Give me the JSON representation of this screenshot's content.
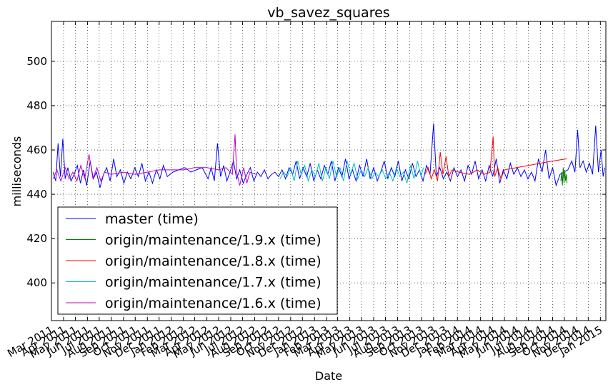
{
  "chart_data": {
    "type": "line",
    "title": "vb_savez_squares",
    "xlabel": "Date",
    "ylabel": "milliseconds",
    "ylim": [
      383,
      518
    ],
    "yticks": [
      400,
      420,
      440,
      460,
      480,
      500
    ],
    "xlim": [
      "2011-03-01",
      "2015-01-15"
    ],
    "xticks": [
      "Mar 2011",
      "Apr 2011",
      "May 2011",
      "Jun 2011",
      "Jul 2011",
      "Aug 2011",
      "Sep 2011",
      "Oct 2011",
      "Nov 2011",
      "Dec 2011",
      "Jan 2012",
      "Feb 2012",
      "Mar 2012",
      "Apr 2012",
      "May 2012",
      "Jun 2012",
      "Jul 2012",
      "Aug 2012",
      "Sep 2012",
      "Oct 2012",
      "Nov 2012",
      "Dec 2012",
      "Jan 2013",
      "Feb 2013",
      "Mar 2013",
      "Apr 2013",
      "May 2013",
      "Jun 2013",
      "Jul 2013",
      "Aug 2013",
      "Sep 2013",
      "Oct 2013",
      "Nov 2013",
      "Dec 2013",
      "Jan 2014",
      "Feb 2014",
      "Mar 2014",
      "Apr 2014",
      "May 2014",
      "Jun 2014",
      "Jul 2014",
      "Aug 2014",
      "Sep 2014",
      "Oct 2014",
      "Nov 2014",
      "Dec 2014",
      "Jan 2015"
    ],
    "grid": true,
    "legend_position": "lower-left",
    "series": [
      {
        "name": "master (time)",
        "color": "#0000ff",
        "points": [
          [
            "2011-03-05",
            450
          ],
          [
            "2011-03-12",
            446
          ],
          [
            "2011-03-18",
            463
          ],
          [
            "2011-03-24",
            448
          ],
          [
            "2011-03-30",
            465
          ],
          [
            "2011-04-05",
            447
          ],
          [
            "2011-04-12",
            452
          ],
          [
            "2011-04-20",
            446
          ],
          [
            "2011-04-28",
            449
          ],
          [
            "2011-05-06",
            453
          ],
          [
            "2011-05-14",
            445
          ],
          [
            "2011-05-22",
            451
          ],
          [
            "2011-05-30",
            444
          ],
          [
            "2011-06-08",
            455
          ],
          [
            "2011-06-16",
            447
          ],
          [
            "2011-06-24",
            450
          ],
          [
            "2011-07-03",
            443
          ],
          [
            "2011-07-12",
            449
          ],
          [
            "2011-07-20",
            452
          ],
          [
            "2011-07-29",
            446
          ],
          [
            "2011-08-07",
            456
          ],
          [
            "2011-08-15",
            448
          ],
          [
            "2011-08-24",
            451
          ],
          [
            "2011-09-02",
            445
          ],
          [
            "2011-09-11",
            450
          ],
          [
            "2011-09-20",
            447
          ],
          [
            "2011-09-30",
            452
          ],
          [
            "2011-10-09",
            448
          ],
          [
            "2011-10-18",
            454
          ],
          [
            "2011-10-27",
            446
          ],
          [
            "2011-11-05",
            450
          ],
          [
            "2011-11-14",
            445
          ],
          [
            "2011-11-24",
            451
          ],
          [
            "2011-12-03",
            447
          ],
          [
            "2011-12-12",
            453
          ],
          [
            "2011-12-22",
            448
          ],
          [
            "2012-01-05",
            450
          ],
          [
            "2012-01-20",
            451
          ],
          [
            "2012-02-05",
            452
          ],
          [
            "2012-02-20",
            450
          ],
          [
            "2012-03-05",
            451
          ],
          [
            "2012-03-20",
            452
          ],
          [
            "2012-04-04",
            447
          ],
          [
            "2012-04-12",
            452
          ],
          [
            "2012-04-20",
            446
          ],
          [
            "2012-04-28",
            463
          ],
          [
            "2012-05-06",
            448
          ],
          [
            "2012-05-14",
            453
          ],
          [
            "2012-05-22",
            446
          ],
          [
            "2012-05-30",
            450
          ],
          [
            "2012-06-08",
            455
          ],
          [
            "2012-06-16",
            447
          ],
          [
            "2012-06-24",
            451
          ],
          [
            "2012-07-03",
            445
          ],
          [
            "2012-07-12",
            449
          ],
          [
            "2012-07-21",
            452
          ],
          [
            "2012-07-30",
            446
          ],
          [
            "2012-08-08",
            450
          ],
          [
            "2012-08-17",
            448
          ],
          [
            "2012-08-26",
            451
          ],
          [
            "2012-09-04",
            447
          ],
          [
            "2012-09-13",
            449
          ],
          [
            "2012-09-22",
            450
          ],
          [
            "2012-10-01",
            448
          ],
          [
            "2012-10-10",
            451
          ],
          [
            "2012-10-19",
            447
          ],
          [
            "2012-10-28",
            452
          ],
          [
            "2012-11-06",
            449
          ],
          [
            "2012-11-15",
            455
          ],
          [
            "2012-11-24",
            447
          ],
          [
            "2012-12-03",
            452
          ],
          [
            "2012-12-12",
            448
          ],
          [
            "2012-12-21",
            454
          ],
          [
            "2012-12-30",
            446
          ],
          [
            "2013-01-08",
            451
          ],
          [
            "2013-01-17",
            447
          ],
          [
            "2013-01-26",
            453
          ],
          [
            "2013-02-04",
            449
          ],
          [
            "2013-02-13",
            455
          ],
          [
            "2013-02-22",
            446
          ],
          [
            "2013-03-03",
            452
          ],
          [
            "2013-03-12",
            448
          ],
          [
            "2013-03-21",
            456
          ],
          [
            "2013-03-30",
            447
          ],
          [
            "2013-04-08",
            451
          ],
          [
            "2013-04-17",
            446
          ],
          [
            "2013-04-26",
            453
          ],
          [
            "2013-05-05",
            448
          ],
          [
            "2013-05-14",
            456
          ],
          [
            "2013-05-23",
            447
          ],
          [
            "2013-06-01",
            452
          ],
          [
            "2013-06-10",
            446
          ],
          [
            "2013-06-19",
            450
          ],
          [
            "2013-06-28",
            455
          ],
          [
            "2013-07-07",
            447
          ],
          [
            "2013-07-16",
            452
          ],
          [
            "2013-07-25",
            448
          ],
          [
            "2013-08-03",
            455
          ],
          [
            "2013-08-12",
            446
          ],
          [
            "2013-08-21",
            451
          ],
          [
            "2013-08-30",
            447
          ],
          [
            "2013-09-08",
            454
          ],
          [
            "2013-09-17",
            448
          ],
          [
            "2013-09-26",
            451
          ],
          [
            "2013-10-05",
            446
          ],
          [
            "2013-10-14",
            453
          ],
          [
            "2013-10-23",
            449
          ],
          [
            "2013-11-01",
            472
          ],
          [
            "2013-11-08",
            448
          ],
          [
            "2013-11-17",
            452
          ],
          [
            "2013-11-26",
            447
          ],
          [
            "2013-12-05",
            450
          ],
          [
            "2013-12-14",
            446
          ],
          [
            "2013-12-23",
            452
          ],
          [
            "2014-01-01",
            448
          ],
          [
            "2014-01-10",
            451
          ],
          [
            "2014-01-19",
            446
          ],
          [
            "2014-01-28",
            453
          ],
          [
            "2014-02-06",
            449
          ],
          [
            "2014-02-15",
            455
          ],
          [
            "2014-02-24",
            447
          ],
          [
            "2014-03-05",
            451
          ],
          [
            "2014-03-14",
            446
          ],
          [
            "2014-03-23",
            453
          ],
          [
            "2014-04-01",
            448
          ],
          [
            "2014-04-10",
            456
          ],
          [
            "2014-04-19",
            445
          ],
          [
            "2014-04-28",
            451
          ],
          [
            "2014-05-07",
            447
          ],
          [
            "2014-05-16",
            454
          ],
          [
            "2014-05-25",
            449
          ],
          [
            "2014-06-03",
            452
          ],
          [
            "2014-06-12",
            448
          ],
          [
            "2014-06-21",
            451
          ],
          [
            "2014-06-30",
            447
          ],
          [
            "2014-07-09",
            450
          ],
          [
            "2014-07-18",
            446
          ],
          [
            "2014-07-27",
            456
          ],
          [
            "2014-08-05",
            450
          ],
          [
            "2014-08-14",
            460
          ],
          [
            "2014-08-23",
            447
          ],
          [
            "2014-09-01",
            452
          ],
          [
            "2014-09-10",
            444
          ],
          [
            "2014-09-20",
            449
          ],
          [
            "2014-10-10",
            451
          ],
          [
            "2014-10-20",
            455
          ],
          [
            "2014-10-28",
            450
          ],
          [
            "2014-11-04",
            469
          ],
          [
            "2014-11-10",
            452
          ],
          [
            "2014-11-18",
            455
          ],
          [
            "2014-11-26",
            450
          ],
          [
            "2014-12-04",
            454
          ],
          [
            "2014-12-12",
            449
          ],
          [
            "2014-12-20",
            471
          ],
          [
            "2014-12-27",
            450
          ],
          [
            "2015-01-03",
            460
          ],
          [
            "2015-01-08",
            448
          ],
          [
            "2015-01-12",
            452
          ]
        ]
      },
      {
        "name": "origin/maintenance/1.9.x (time)",
        "color": "#008000",
        "points": [
          [
            "2014-09-22",
            446
          ],
          [
            "2014-09-24",
            450
          ],
          [
            "2014-09-26",
            444
          ],
          [
            "2014-09-28",
            452
          ],
          [
            "2014-09-30",
            445
          ],
          [
            "2014-10-02",
            451
          ],
          [
            "2014-10-04",
            446
          ],
          [
            "2014-10-06",
            449
          ],
          [
            "2014-10-08",
            445
          ]
        ]
      },
      {
        "name": "origin/maintenance/1.8.x (time)",
        "color": "#ff0000",
        "points": [
          [
            "2013-10-10",
            449
          ],
          [
            "2013-10-18",
            452
          ],
          [
            "2013-10-26",
            447
          ],
          [
            "2013-11-03",
            451
          ],
          [
            "2013-11-11",
            446
          ],
          [
            "2013-11-18",
            459
          ],
          [
            "2013-11-25",
            449
          ],
          [
            "2013-12-03",
            457
          ],
          [
            "2013-12-10",
            448
          ],
          [
            "2013-12-18",
            451
          ],
          [
            "2014-01-05",
            450
          ],
          [
            "2014-02-01",
            449
          ],
          [
            "2014-02-20",
            451
          ],
          [
            "2014-03-10",
            449
          ],
          [
            "2014-03-25",
            450
          ],
          [
            "2014-04-02",
            466
          ],
          [
            "2014-04-06",
            448
          ],
          [
            "2014-04-14",
            452
          ],
          [
            "2014-04-22",
            447
          ],
          [
            "2014-05-01",
            451
          ],
          [
            "2014-06-01",
            452
          ],
          [
            "2014-07-01",
            453
          ],
          [
            "2014-08-01",
            454
          ],
          [
            "2014-09-01",
            455
          ],
          [
            "2014-10-08",
            456
          ]
        ]
      },
      {
        "name": "origin/maintenance/1.7.x (time)",
        "color": "#00bfbf",
        "points": [
          [
            "2012-10-05",
            447
          ],
          [
            "2012-10-14",
            450
          ],
          [
            "2012-10-23",
            448
          ],
          [
            "2012-11-01",
            452
          ],
          [
            "2012-11-10",
            446
          ],
          [
            "2012-11-19",
            455
          ],
          [
            "2012-11-28",
            449
          ],
          [
            "2012-12-07",
            453
          ],
          [
            "2012-12-16",
            446
          ],
          [
            "2012-12-25",
            451
          ],
          [
            "2013-01-03",
            448
          ],
          [
            "2013-01-12",
            454
          ],
          [
            "2013-01-21",
            446
          ],
          [
            "2013-01-30",
            452
          ],
          [
            "2013-02-08",
            447
          ],
          [
            "2013-02-17",
            455
          ],
          [
            "2013-02-26",
            448
          ],
          [
            "2013-03-07",
            452
          ],
          [
            "2013-03-16",
            446
          ],
          [
            "2013-03-25",
            455
          ],
          [
            "2013-04-03",
            449
          ],
          [
            "2013-04-12",
            454
          ],
          [
            "2013-04-21",
            447
          ],
          [
            "2013-04-30",
            451
          ],
          [
            "2013-05-09",
            448
          ],
          [
            "2013-05-18",
            452
          ],
          [
            "2013-05-27",
            447
          ],
          [
            "2013-06-05",
            450
          ],
          [
            "2013-06-14",
            448
          ],
          [
            "2013-06-23",
            451
          ],
          [
            "2013-07-02",
            447
          ],
          [
            "2013-07-11",
            450
          ],
          [
            "2013-07-20",
            446
          ],
          [
            "2013-07-29",
            452
          ],
          [
            "2013-08-07",
            448
          ],
          [
            "2013-08-16",
            450
          ],
          [
            "2013-08-25",
            445
          ],
          [
            "2013-09-03",
            453
          ],
          [
            "2013-09-12",
            447
          ],
          [
            "2013-09-21",
            455
          ],
          [
            "2013-09-30",
            448
          ],
          [
            "2013-10-06",
            452
          ]
        ]
      },
      {
        "name": "origin/maintenance/1.6.x (time)",
        "color": "#bf00bf",
        "points": [
          [
            "2011-03-05",
            447
          ],
          [
            "2011-03-15",
            451
          ],
          [
            "2011-03-25",
            446
          ],
          [
            "2011-04-05",
            452
          ],
          [
            "2011-04-15",
            447
          ],
          [
            "2011-04-25",
            450
          ],
          [
            "2011-05-05",
            446
          ],
          [
            "2011-05-15",
            453
          ],
          [
            "2011-05-25",
            447
          ],
          [
            "2011-06-05",
            458
          ],
          [
            "2011-06-15",
            447
          ],
          [
            "2011-06-25",
            452
          ],
          [
            "2011-07-05",
            446
          ],
          [
            "2011-07-15",
            450
          ],
          [
            "2011-08-01",
            449
          ],
          [
            "2011-09-01",
            450
          ],
          [
            "2011-10-01",
            449
          ],
          [
            "2011-11-01",
            450
          ],
          [
            "2011-12-01",
            451
          ],
          [
            "2012-01-01",
            451
          ],
          [
            "2012-02-01",
            451
          ],
          [
            "2012-03-01",
            452
          ],
          [
            "2012-04-01",
            452
          ],
          [
            "2012-05-01",
            451
          ],
          [
            "2012-05-20",
            452
          ],
          [
            "2012-06-05",
            449
          ],
          [
            "2012-06-12",
            467
          ],
          [
            "2012-06-16",
            450
          ],
          [
            "2012-06-24",
            444
          ],
          [
            "2012-07-04",
            452
          ],
          [
            "2012-07-12",
            445
          ],
          [
            "2012-07-20",
            450
          ],
          [
            "2012-08-05",
            449
          ]
        ]
      }
    ]
  }
}
